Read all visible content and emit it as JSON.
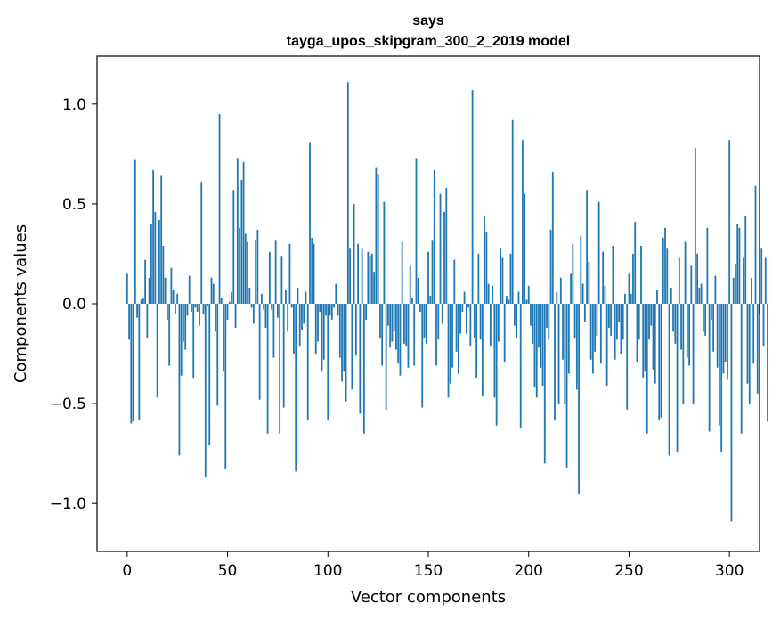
{
  "chart_data": {
    "type": "bar",
    "title": "says",
    "subtitle": "tayga_upos_skipgram_300_2_2019 model",
    "xlabel": "Vector components",
    "ylabel": "Components values",
    "xlim": [
      -15,
      315
    ],
    "ylim": [
      -1.24,
      1.24
    ],
    "xticks": [
      0,
      50,
      100,
      150,
      200,
      250,
      300
    ],
    "yticks": [
      -1.0,
      -0.5,
      0.0,
      0.5,
      1.0
    ],
    "ytick_labels": [
      "−1.0",
      "−0.5",
      "0.0",
      "0.5",
      "1.0"
    ],
    "grid": false,
    "bar_color": "#1f77b4",
    "values": [
      0.15,
      -0.18,
      -0.6,
      -0.59,
      0.72,
      -0.07,
      -0.58,
      0.02,
      0.03,
      0.22,
      -0.17,
      0.13,
      0.4,
      0.67,
      0.46,
      -0.47,
      0.42,
      0.64,
      0.29,
      0.13,
      -0.08,
      -0.31,
      0.18,
      0.07,
      -0.05,
      0.05,
      -0.76,
      -0.36,
      -0.19,
      -0.23,
      -0.06,
      0.14,
      -0.04,
      -0.37,
      -0.02,
      -0.04,
      -0.11,
      0.61,
      -0.05,
      -0.87,
      -0.01,
      -0.71,
      0.13,
      0.1,
      -0.14,
      -0.51,
      0.95,
      0.03,
      -0.34,
      -0.83,
      -0.08,
      0.01,
      0.06,
      0.57,
      -0.12,
      0.73,
      0.38,
      0.62,
      0.71,
      0.35,
      0.31,
      0.08,
      -0.02,
      -0.1,
      0.32,
      0.37,
      -0.48,
      0.05,
      -0.03,
      -0.12,
      -0.65,
      0.26,
      -0.03,
      -0.27,
      0.32,
      -0.07,
      -0.65,
      0.24,
      -0.52,
      0.07,
      -0.14,
      0.3,
      -0.02,
      -0.25,
      -0.84,
      0.08,
      -0.21,
      -0.13,
      -0.1,
      0.06,
      -0.58,
      0.81,
      0.33,
      0.3,
      -0.25,
      -0.19,
      -0.04,
      -0.34,
      -0.28,
      -0.06,
      -0.58,
      -0.06,
      -0.08,
      -0.02,
      0.1,
      -0.06,
      -0.27,
      -0.39,
      -0.34,
      -0.49,
      1.11,
      0.28,
      -0.43,
      0.5,
      -0.26,
      0.3,
      -0.55,
      0.28,
      -0.65,
      -0.08,
      0.26,
      0.24,
      0.25,
      0.16,
      0.68,
      0.65,
      -0.17,
      -0.31,
      0.51,
      -0.53,
      -0.11,
      -0.22,
      -0.19,
      -0.14,
      -0.23,
      -0.3,
      -0.36,
      0.31,
      -0.2,
      -0.21,
      -0.32,
      0.19,
      0.03,
      -0.31,
      0.73,
      0.13,
      -0.04,
      -0.52,
      -0.17,
      -0.2,
      0.26,
      0.04,
      0.32,
      0.67,
      -0.31,
      -0.18,
      0.55,
      -0.1,
      0.46,
      0.58,
      -0.47,
      -0.4,
      -0.32,
      0.22,
      -0.24,
      -0.35,
      -0.15,
      -0.04,
      0.06,
      -0.15,
      -0.02,
      -0.21,
      1.07,
      -0.17,
      -0.37,
      0.25,
      -0.18,
      -0.46,
      0.44,
      0.36,
      0.1,
      -0.21,
      0.09,
      -0.47,
      -0.61,
      -0.19,
      0.28,
      0.23,
      -0.29,
      0.04,
      0.02,
      0.25,
      0.92,
      -0.11,
      -0.17,
      0.06,
      -0.62,
      0.82,
      0.55,
      0.02,
      0.09,
      -0.11,
      -0.2,
      -0.42,
      -0.47,
      -0.22,
      -0.32,
      -0.41,
      -0.8,
      -0.12,
      -0.18,
      0.37,
      0.66,
      -0.58,
      0.06,
      -0.5,
      0.13,
      -0.28,
      -0.5,
      -0.82,
      -0.35,
      0.15,
      0.3,
      -0.17,
      -0.43,
      -0.95,
      0.34,
      0.1,
      -0.09,
      0.57,
      0.21,
      -0.28,
      -0.35,
      -0.24,
      -0.16,
      0.51,
      -0.3,
      0.26,
      0.09,
      -0.41,
      -0.12,
      -0.16,
      0.29,
      -0.28,
      -0.18,
      -0.09,
      -0.25,
      -0.18,
      0.05,
      -0.53,
      0.15,
      0.05,
      0.25,
      0.41,
      -0.29,
      -0.18,
      0.29,
      -0.37,
      -0.34,
      -0.65,
      -0.18,
      -0.11,
      -0.33,
      -0.4,
      0.07,
      -0.58,
      -0.57,
      0.33,
      0.38,
      0.28,
      -0.76,
      0.08,
      -0.14,
      -0.2,
      -0.74,
      0.23,
      -0.23,
      -0.5,
      0.31,
      -0.27,
      -0.31,
      0.19,
      -0.5,
      0.78,
      0.25,
      0.08,
      0.1,
      -0.14,
      -0.16,
      0.38,
      -0.64,
      -0.08,
      -0.24,
      0.14,
      -0.32,
      -0.61,
      -0.74,
      -0.35,
      -0.29,
      -0.38,
      0.82,
      -1.09,
      0.13,
      0.2,
      0.4,
      0.38,
      -0.65,
      0.23,
      0.44,
      -0.4,
      -0.5,
      0.13,
      -0.3,
      0.59,
      -0.45,
      -0.05,
      0.28,
      -0.21,
      0.23,
      -0.59
    ]
  }
}
